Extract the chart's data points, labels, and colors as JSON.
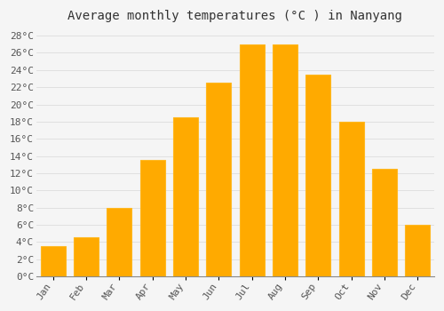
{
  "title": "Average monthly temperatures (°C ) in Nanyang",
  "months": [
    "Jan",
    "Feb",
    "Mar",
    "Apr",
    "May",
    "Jun",
    "Jul",
    "Aug",
    "Sep",
    "Oct",
    "Nov",
    "Dec"
  ],
  "temperatures": [
    3.5,
    4.5,
    8.0,
    13.5,
    18.5,
    22.5,
    27.0,
    27.0,
    23.5,
    18.0,
    12.5,
    6.0
  ],
  "bar_color_main": "#FFAA00",
  "bar_color_edge": "#FFB820",
  "background_color": "#F5F5F5",
  "grid_color": "#DDDDDD",
  "ylim": [
    0,
    29
  ],
  "ytick_step": 2,
  "title_fontsize": 10,
  "tick_fontsize": 8,
  "font_family": "monospace"
}
